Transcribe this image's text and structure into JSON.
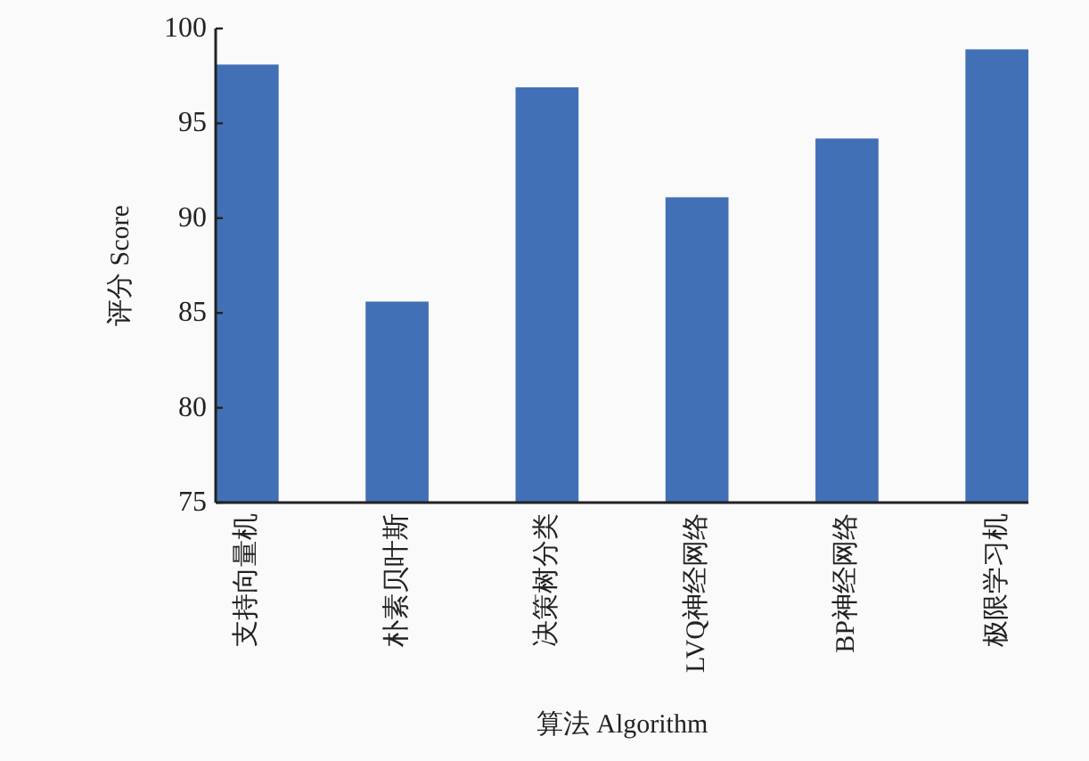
{
  "chart_data": {
    "type": "bar",
    "xlabel": "算法 Algorithm",
    "ylabel": "评分 Score",
    "categories": [
      "支持向量机",
      "朴素贝叶斯",
      "决策树分类",
      "LVQ神经网络",
      "BP神经网络",
      "极限学习机"
    ],
    "values": [
      98.1,
      85.6,
      96.9,
      91.1,
      94.2,
      98.9
    ],
    "color": "#4170b6",
    "ylim": [
      75,
      100
    ],
    "yticks": [
      75,
      80,
      85,
      90,
      95,
      100
    ]
  }
}
